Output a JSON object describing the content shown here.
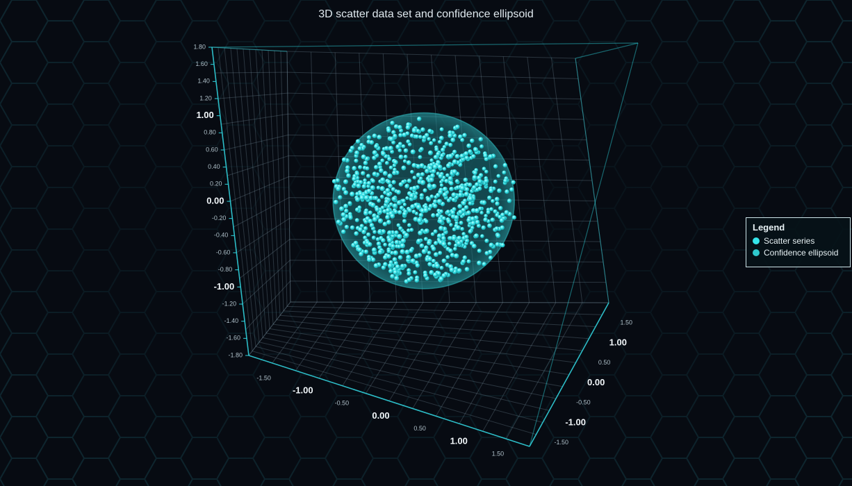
{
  "chart_data": {
    "type": "scatter",
    "title": "3D scatter data set and confidence ellipsoid",
    "axes": {
      "y": {
        "range": [
          -1.8,
          1.8
        ],
        "major_ticks": [
          {
            "value": -1.8,
            "label": "-1.80"
          },
          {
            "value": -1.6,
            "label": "-1.60"
          },
          {
            "value": -1.4,
            "label": "-1.40"
          },
          {
            "value": -1.2,
            "label": "-1.20"
          },
          {
            "value": -1.0,
            "label": "-1.00"
          },
          {
            "value": -0.8,
            "label": "-0.80"
          },
          {
            "value": -0.6,
            "label": "-0.60"
          },
          {
            "value": -0.4,
            "label": "-0.40"
          },
          {
            "value": -0.2,
            "label": "-0.20"
          },
          {
            "value": 0.0,
            "label": "0.00"
          },
          {
            "value": 0.2,
            "label": "0.20"
          },
          {
            "value": 0.4,
            "label": "0.40"
          },
          {
            "value": 0.6,
            "label": "0.60"
          },
          {
            "value": 0.8,
            "label": "0.80"
          },
          {
            "value": 1.0,
            "label": "1.00"
          },
          {
            "value": 1.2,
            "label": "1.20"
          },
          {
            "value": 1.4,
            "label": "1.40"
          },
          {
            "value": 1.6,
            "label": "1.60"
          },
          {
            "value": 1.8,
            "label": "1.80"
          }
        ],
        "emphasized": [
          -1.0,
          0.0,
          1.0
        ]
      },
      "x": {
        "range": [
          -1.8,
          1.8
        ],
        "major_ticks": [
          {
            "value": -1.5,
            "label": "-1.50"
          },
          {
            "value": -1.0,
            "label": "-1.00"
          },
          {
            "value": -0.5,
            "label": "-0.50"
          },
          {
            "value": 0.0,
            "label": "0.00"
          },
          {
            "value": 0.5,
            "label": "0.50"
          },
          {
            "value": 1.0,
            "label": "1.00"
          },
          {
            "value": 1.5,
            "label": "1.50"
          }
        ],
        "emphasized": [
          -1.0,
          0.0,
          1.0
        ]
      },
      "z": {
        "range": [
          -1.8,
          1.8
        ],
        "major_ticks": [
          {
            "value": -1.5,
            "label": "-1.50"
          },
          {
            "value": -1.0,
            "label": "-1.00"
          },
          {
            "value": -0.5,
            "label": "-0.50"
          },
          {
            "value": 0.0,
            "label": "0.00"
          },
          {
            "value": 0.5,
            "label": "0.50"
          },
          {
            "value": 1.0,
            "label": "1.00"
          },
          {
            "value": 1.5,
            "label": "1.50"
          }
        ],
        "emphasized": [
          -1.0,
          0.0,
          1.0
        ]
      }
    },
    "series": [
      {
        "name": "Scatter series",
        "kind": "points",
        "count": 900,
        "distribution": "uniform within sphere",
        "center": [
          0,
          0,
          0
        ],
        "radius": 1.0,
        "color": "#35e5ea"
      },
      {
        "name": "Confidence ellipsoid",
        "kind": "ellipsoid",
        "center": [
          0,
          0,
          0
        ],
        "radii": [
          1.05,
          1.05,
          1.05
        ],
        "color": "#2fc9cd"
      }
    ],
    "legend": {
      "title": "Legend",
      "position": "right"
    },
    "grid": true
  },
  "theme": {
    "background": "#070b12",
    "axis_color": "#2fd6e0",
    "grid_color": "#8aa6b2",
    "text_color": "#dfe8ee"
  }
}
